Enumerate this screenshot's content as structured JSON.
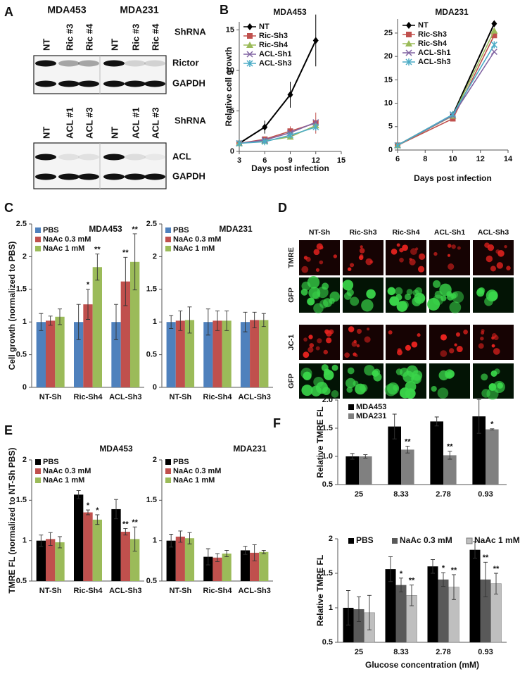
{
  "panel_labels": [
    "A",
    "B",
    "C",
    "D",
    "E",
    "F"
  ],
  "blots": {
    "cell_lines": [
      "MDA453",
      "MDA231"
    ],
    "top": {
      "lanes": [
        "NT",
        "Ric #3",
        "Ric #4",
        "NT",
        "Ric #3",
        "Ric #4"
      ],
      "header": "ShRNA",
      "rows": [
        "Rictor",
        "GAPDH"
      ]
    },
    "bottom": {
      "lanes": [
        "NT",
        "ACL #1",
        "ACL #3",
        "NT",
        "ACL #1",
        "ACL #3"
      ],
      "header": "ShRNA",
      "rows": [
        "ACL",
        "GAPDH"
      ]
    }
  },
  "micrographs": {
    "columns": [
      "NT-Sh",
      "Ric-Sh3",
      "Ric-Sh4",
      "ACL-Sh1",
      "ACL-Sh3"
    ],
    "rows": [
      "TMRE",
      "GFP",
      "JC-1",
      "GFP"
    ]
  },
  "chart_data": [
    {
      "type": "line",
      "title": "MDA453",
      "y_label": "Relative cell growth",
      "x_label": "Days post infection",
      "x": [
        3,
        6,
        9,
        12
      ],
      "xlim": [
        3,
        15
      ],
      "xticks": [
        3,
        6,
        9,
        12,
        15
      ],
      "ylim": [
        0,
        16
      ],
      "yticks": [
        0,
        5,
        10,
        15
      ],
      "legend": "upper left",
      "series": [
        {
          "name": "NT",
          "color": "#000000",
          "marker": "diamond",
          "values": [
            1,
            3,
            7,
            13.7
          ],
          "errors": [
            0.2,
            0.8,
            1.6,
            3.2
          ]
        },
        {
          "name": "Ric-Sh3",
          "color": "#c0504d",
          "marker": "square",
          "values": [
            1,
            1.5,
            2.5,
            3.5
          ],
          "errors": [
            0.2,
            0.3,
            0.6,
            1.3
          ]
        },
        {
          "name": "Ric-Sh4",
          "color": "#9bbb59",
          "marker": "triangle",
          "values": [
            1,
            1.3,
            1.8,
            3.2
          ]
        },
        {
          "name": "ACL-Sh1",
          "color": "#8064a2",
          "marker": "x",
          "values": [
            1,
            1.4,
            2.3,
            3.6
          ]
        },
        {
          "name": "ACL-Sh3",
          "color": "#4bacc6",
          "marker": "star",
          "values": [
            1,
            1.2,
            2,
            3
          ]
        }
      ]
    },
    {
      "type": "line",
      "title": "MDA231",
      "x_label": "Days post infection",
      "x": [
        6,
        10,
        13
      ],
      "xlim": [
        6,
        14
      ],
      "xticks": [
        6,
        8,
        10,
        12,
        14
      ],
      "ylim": [
        0,
        28
      ],
      "yticks": [
        0,
        5,
        10,
        15,
        20,
        25
      ],
      "legend": "upper left",
      "series": [
        {
          "name": "NT",
          "color": "#000000",
          "marker": "diamond",
          "values": [
            1,
            7.5,
            27
          ]
        },
        {
          "name": "Ric-Sh3",
          "color": "#c0504d",
          "marker": "square",
          "values": [
            1,
            6.7,
            24.5
          ]
        },
        {
          "name": "Ric-Sh4",
          "color": "#9bbb59",
          "marker": "triangle",
          "values": [
            1,
            7.3,
            25.5
          ]
        },
        {
          "name": "ACL-Sh1",
          "color": "#8064a2",
          "marker": "x",
          "values": [
            1,
            7.4,
            21
          ]
        },
        {
          "name": "ACL-Sh3",
          "color": "#4bacc6",
          "marker": "star",
          "values": [
            1,
            7.6,
            22.5
          ]
        }
      ]
    },
    {
      "type": "bar",
      "title": "MDA453",
      "y_label": "Cell growth (normalized to PBS)",
      "categories": [
        "NT-Sh",
        "Ric-Sh4",
        "ACL-Sh3"
      ],
      "ylim": [
        0,
        2.5
      ],
      "yticks": [
        0,
        0.5,
        1,
        1.5,
        2,
        2.5
      ],
      "legend": "upper left",
      "series": [
        {
          "name": "PBS",
          "color": "#4f81bd",
          "values": [
            1,
            1,
            1
          ],
          "errors": [
            0.13,
            0.27,
            0.27
          ]
        },
        {
          "name": "NaAc 0.3 mM",
          "color": "#c0504d",
          "values": [
            1.02,
            1.27,
            1.62
          ],
          "errors": [
            0.07,
            0.23,
            0.37
          ],
          "stars": [
            null,
            "*",
            "**"
          ]
        },
        {
          "name": "NaAc 1 mM",
          "color": "#9bbb59",
          "values": [
            1.08,
            1.84,
            1.92
          ],
          "errors": [
            0.12,
            0.2,
            0.43
          ],
          "stars": [
            null,
            "**",
            "**"
          ]
        }
      ]
    },
    {
      "type": "bar",
      "title": "MDA231",
      "categories": [
        "NT-Sh",
        "Ric-Sh4",
        "ACL-Sh3"
      ],
      "ylim": [
        0,
        2.5
      ],
      "yticks": [
        0,
        0.5,
        1,
        1.5,
        2,
        2.5
      ],
      "legend": "upper left",
      "series": [
        {
          "name": "PBS",
          "color": "#4f81bd",
          "values": [
            1,
            1,
            1
          ],
          "errors": [
            0.1,
            0.2,
            0.15
          ]
        },
        {
          "name": "NaAc 0.3 mM",
          "color": "#c0504d",
          "values": [
            1.02,
            1.02,
            1.03
          ],
          "errors": [
            0.15,
            0.15,
            0.12
          ]
        },
        {
          "name": "NaAc 1 mM",
          "color": "#9bbb59",
          "values": [
            1.03,
            1.02,
            1.03
          ],
          "errors": [
            0.2,
            0.15,
            0.1
          ]
        }
      ]
    },
    {
      "type": "bar",
      "title": "MDA453",
      "y_label": "TMRE FL (normalized to NT-Sh PBS)",
      "categories": [
        "NT-Sh",
        "Ric-Sh4",
        "ACL-Sh3"
      ],
      "ylim": [
        0.5,
        2
      ],
      "yticks": [
        0.5,
        1,
        1.5,
        2
      ],
      "legend": "upper left",
      "series": [
        {
          "name": "PBS",
          "color": "#000000",
          "values": [
            1,
            1.57,
            1.39
          ],
          "errors": [
            0.07,
            0.05,
            0.12
          ]
        },
        {
          "name": "NaAc 0.3 mM",
          "color": "#c0504d",
          "values": [
            1.02,
            1.35,
            1.11
          ],
          "errors": [
            0.08,
            0.03,
            0.04
          ],
          "stars": [
            null,
            "*",
            "**"
          ]
        },
        {
          "name": "NaAc 1 mM",
          "color": "#9bbb59",
          "values": [
            0.98,
            1.26,
            1.02
          ],
          "errors": [
            0.07,
            0.06,
            0.15
          ],
          "stars": [
            null,
            "*",
            "**"
          ]
        }
      ]
    },
    {
      "type": "bar",
      "title": "MDA231",
      "categories": [
        "NT-Sh",
        "Ric-Sh4",
        "ACL-Sh3"
      ],
      "ylim": [
        0.5,
        2
      ],
      "yticks": [
        0.5,
        1,
        1.5,
        2
      ],
      "legend": "upper left",
      "series": [
        {
          "name": "PBS",
          "color": "#000000",
          "values": [
            1,
            0.8,
            0.88
          ],
          "errors": [
            0.08,
            0.1,
            0.05
          ]
        },
        {
          "name": "NaAc 0.3 mM",
          "color": "#c0504d",
          "values": [
            1.05,
            0.79,
            0.85
          ],
          "errors": [
            0.07,
            0.05,
            0.1
          ]
        },
        {
          "name": "NaAc 1 mM",
          "color": "#9bbb59",
          "values": [
            1.03,
            0.84,
            0.86
          ],
          "errors": [
            0.07,
            0.04,
            0.02
          ]
        }
      ]
    },
    {
      "type": "bar",
      "y_label": "Relative TMRE FL",
      "categories": [
        "25",
        "8.33",
        "2.78",
        "0.93"
      ],
      "ylim": [
        0.5,
        2
      ],
      "legend": "upper left",
      "yticks": [
        {
          "value": 0.5,
          "label": "0.5"
        },
        {
          "value": 1,
          "label": "1.0"
        },
        {
          "value": 1.5,
          "label": "1.5"
        },
        {
          "value": 2,
          "label": "2.0"
        }
      ],
      "series": [
        {
          "name": "MDA453",
          "color": "#000000",
          "values": [
            1,
            1.53,
            1.62,
            1.71
          ],
          "errors": [
            0.05,
            0.22,
            0.08,
            0.3
          ]
        },
        {
          "name": "MDA231",
          "color": "#808080",
          "values": [
            1,
            1.12,
            1.02,
            1.48
          ],
          "errors": [
            0.03,
            0.06,
            0.07,
            0.01
          ],
          "stars": [
            null,
            "**",
            "**",
            "*"
          ]
        }
      ]
    },
    {
      "type": "bar",
      "y_label": "Relative TMRE FL",
      "x_label": "Glucose concentration (mM)",
      "categories": [
        "25",
        "8.33",
        "2.78",
        "0.93"
      ],
      "ylim": [
        0.5,
        2
      ],
      "yticks": [
        0.5,
        1,
        1.5,
        2
      ],
      "legend": "top",
      "legend_orientation": "horizontal",
      "series": [
        {
          "name": "PBS",
          "color": "#000000",
          "values": [
            1,
            1.56,
            1.6,
            1.84
          ],
          "errors": [
            0.25,
            0.18,
            0.1,
            0.12
          ]
        },
        {
          "name": "NaAc 0.3 mM",
          "color": "#595959",
          "values": [
            0.98,
            1.33,
            1.41,
            1.41
          ],
          "errors": [
            0.18,
            0.1,
            0.1,
            0.25
          ],
          "stars": [
            null,
            "*",
            "*",
            "**"
          ]
        },
        {
          "name": "NaAc 1 mM",
          "color": "#bfbfbf",
          "values": [
            0.93,
            1.18,
            1.3,
            1.35
          ],
          "errors": [
            0.25,
            0.15,
            0.18,
            0.15
          ],
          "stars": [
            null,
            "**",
            "**",
            "**"
          ]
        }
      ]
    }
  ]
}
